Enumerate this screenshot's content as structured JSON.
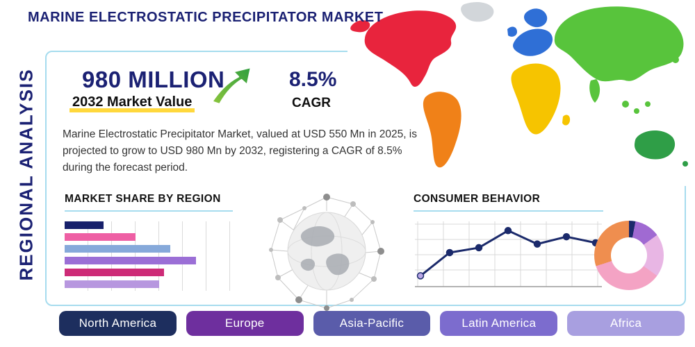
{
  "header": {
    "title": "MARINE ELECTROSTATIC PRECIPITATOR MARKET"
  },
  "side_label": "REGIONAL ANALYSIS",
  "stats": {
    "market_value": "980 MILLION",
    "market_value_caption": "2032 Market Value",
    "cagr_value": "8.5%",
    "cagr_caption": "CAGR"
  },
  "description": "Marine Electrostatic Precipitator Market, valued at USD 550 Mn in 2025, is projected to grow to USD 980 Mn by 2032, registering a CAGR of 8.5% during the forecast period.",
  "section_titles": {
    "market_share": "MARKET SHARE BY REGION",
    "consumer_behavior": "CONSUMER BEHAVIOR"
  },
  "region_buttons": [
    {
      "label": "North America",
      "color": "#1d2e5e"
    },
    {
      "label": "Europe",
      "color": "#6e2f9e"
    },
    {
      "label": "Asia-Pacific",
      "color": "#5a5caa"
    },
    {
      "label": "Latin America",
      "color": "#7c6cce"
    },
    {
      "label": "Africa",
      "color": "#a89fe0"
    }
  ],
  "accent": {
    "navy": "#1b2173",
    "frame_blue": "#a6dcee",
    "highlight_yellow": "#ffd83d",
    "arrow_green": "#4fae33"
  },
  "map_colors": {
    "north_america": "#e8243d",
    "south_america": "#f08118",
    "greenland": "#d2d6da",
    "europe": "#2f6fd6",
    "africa": "#f6c400",
    "asia": "#58c43c",
    "australia": "#2f9e47"
  },
  "chart_data": [
    {
      "type": "bar",
      "title": "MARKET SHARE BY REGION",
      "orientation": "horizontal",
      "categories": [
        "",
        "",
        "",
        "",
        "",
        ""
      ],
      "values": [
        23,
        42,
        63,
        78,
        59,
        56
      ],
      "colors": [
        "#17206b",
        "#ee5fa4",
        "#86a9da",
        "#9b6fd6",
        "#cd2b77",
        "#b797df"
      ],
      "xlim": [
        0,
        100
      ],
      "grid": true,
      "legend": "none"
    },
    {
      "type": "line",
      "title": "CONSUMER BEHAVIOR",
      "x": [
        1,
        2,
        3,
        4,
        5,
        6,
        7
      ],
      "values": [
        1.0,
        2.9,
        3.3,
        4.7,
        3.6,
        4.2,
        3.7
      ],
      "color": "#1b2a6b",
      "first_point_color": "#b9a7e6",
      "ylim": [
        0,
        5
      ],
      "grid": true,
      "legend": "none"
    },
    {
      "type": "pie",
      "title": "",
      "inner_radius_ratio": 0.52,
      "slices": [
        {
          "value": 3,
          "color": "#1b2a6b"
        },
        {
          "value": 12,
          "color": "#a06ad2"
        },
        {
          "value": 20,
          "color": "#e8b6e4"
        },
        {
          "value": 35,
          "color": "#f4a3c4"
        },
        {
          "value": 30,
          "color": "#ef8e4f"
        }
      ]
    }
  ]
}
